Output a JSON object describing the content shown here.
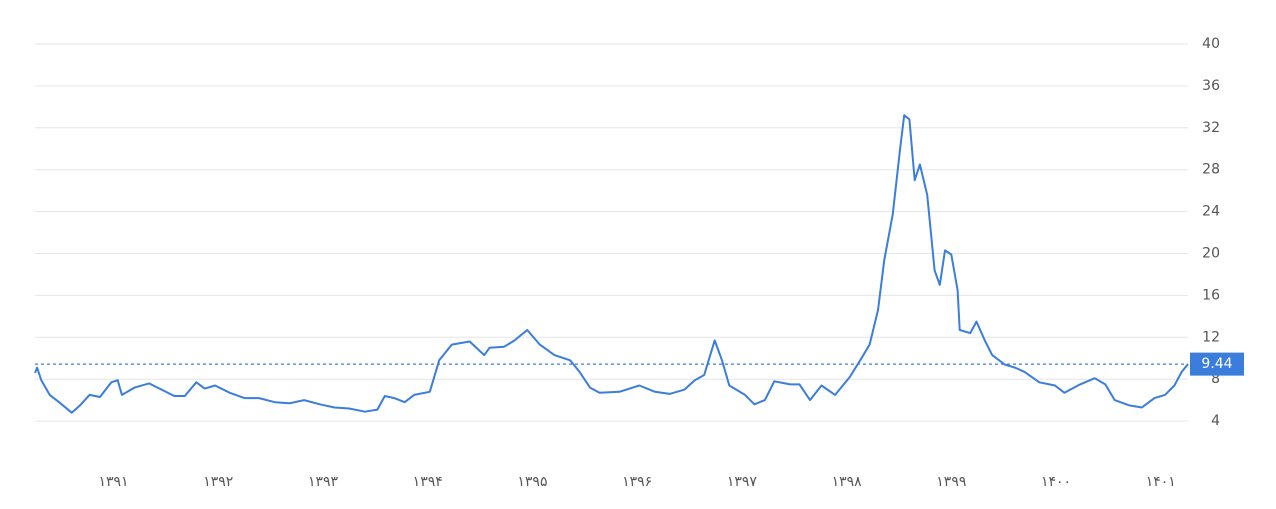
{
  "chart_data": {
    "type": "line",
    "color": "#3b7ddd",
    "grid": true,
    "xlim": [
      1390.25,
      1401.26
    ],
    "ylim": [
      0,
      40
    ],
    "yticks": [
      4,
      8,
      12,
      16,
      20,
      24,
      28,
      32,
      36,
      40
    ],
    "xticks": [
      {
        "value": 1391,
        "label": "۱۳۹۱"
      },
      {
        "value": 1392,
        "label": "۱۳۹۲"
      },
      {
        "value": 1393,
        "label": "۱۳۹۳"
      },
      {
        "value": 1394,
        "label": "۱۳۹۴"
      },
      {
        "value": 1395,
        "label": "۱۳۹۵"
      },
      {
        "value": 1396,
        "label": "۱۳۹۶"
      },
      {
        "value": 1397,
        "label": "۱۳۹۷"
      },
      {
        "value": 1398,
        "label": "۱۳۹۸"
      },
      {
        "value": 1399,
        "label": "۱۳۹۹"
      },
      {
        "value": 1400,
        "label": "۱۴۰۰"
      },
      {
        "value": 1401,
        "label": "۱۴۰۱"
      }
    ],
    "current_value": 9.44,
    "x": [
      1390.25,
      1390.27,
      1390.31,
      1390.39,
      1390.48,
      1390.6,
      1390.68,
      1390.77,
      1390.87,
      1390.98,
      1391.04,
      1391.08,
      1391.2,
      1391.34,
      1391.44,
      1391.58,
      1391.68,
      1391.79,
      1391.87,
      1391.97,
      1392.11,
      1392.25,
      1392.39,
      1392.54,
      1392.68,
      1392.82,
      1392.97,
      1393.11,
      1393.25,
      1393.4,
      1393.52,
      1393.59,
      1393.68,
      1393.78,
      1393.87,
      1394.02,
      1394.11,
      1394.23,
      1394.4,
      1394.54,
      1394.59,
      1394.73,
      1394.83,
      1394.95,
      1395.07,
      1395.21,
      1395.36,
      1395.45,
      1395.55,
      1395.64,
      1395.83,
      1396.02,
      1396.17,
      1396.31,
      1396.45,
      1396.55,
      1396.64,
      1396.74,
      1396.81,
      1396.88,
      1397.03,
      1397.12,
      1397.22,
      1397.31,
      1397.46,
      1397.55,
      1397.65,
      1397.76,
      1397.89,
      1398.03,
      1398.13,
      1398.22,
      1398.3,
      1398.36,
      1398.44,
      1398.51,
      1398.55,
      1398.6,
      1398.65,
      1398.7,
      1398.77,
      1398.84,
      1398.89,
      1398.94,
      1399.0,
      1399.06,
      1399.08,
      1399.18,
      1399.24,
      1399.32,
      1399.39,
      1399.51,
      1399.61,
      1399.7,
      1399.84,
      1399.99,
      1400.08,
      1400.23,
      1400.37,
      1400.47,
      1400.56,
      1400.7,
      1400.82,
      1400.94,
      1401.04,
      1401.13,
      1401.2,
      1401.26
    ],
    "values": [
      8.6,
      9.1,
      7.9,
      6.5,
      5.8,
      4.8,
      5.5,
      6.5,
      6.3,
      7.7,
      7.9,
      6.5,
      7.2,
      7.6,
      7.1,
      6.4,
      6.4,
      7.7,
      7.1,
      7.4,
      6.7,
      6.2,
      6.2,
      5.8,
      5.7,
      6.0,
      5.6,
      5.3,
      5.2,
      4.9,
      5.1,
      6.4,
      6.2,
      5.8,
      6.5,
      6.8,
      9.8,
      11.3,
      11.6,
      10.3,
      11.0,
      11.1,
      11.7,
      12.7,
      11.3,
      10.3,
      9.8,
      8.7,
      7.2,
      6.7,
      6.8,
      7.4,
      6.8,
      6.6,
      7.0,
      7.9,
      8.4,
      11.7,
      9.8,
      7.4,
      6.5,
      5.6,
      6.0,
      7.8,
      7.5,
      7.5,
      6.0,
      7.4,
      6.5,
      8.2,
      9.8,
      11.3,
      14.6,
      19.4,
      23.7,
      29.9,
      33.2,
      32.8,
      27.0,
      28.5,
      25.6,
      18.4,
      17.0,
      20.3,
      19.9,
      16.5,
      12.7,
      12.4,
      13.5,
      11.7,
      10.3,
      9.4,
      9.1,
      8.7,
      7.7,
      7.4,
      6.7,
      7.5,
      8.1,
      7.5,
      6.0,
      5.5,
      5.3,
      6.2,
      6.5,
      7.4,
      8.7,
      9.44
    ]
  }
}
